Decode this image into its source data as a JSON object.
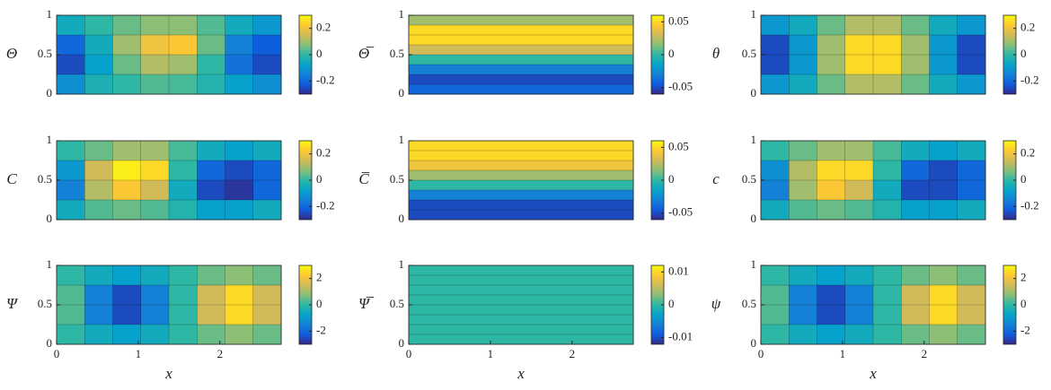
{
  "chart_data": [
    {
      "type": "heatmap",
      "ylabel": "Θ",
      "xlim": [
        0,
        2.75
      ],
      "ylim": [
        0,
        1
      ],
      "yticks": [
        0,
        0.5,
        1
      ],
      "clim": [
        -0.3,
        0.3
      ],
      "cticks": [
        -0.2,
        0,
        0.2
      ],
      "z": [
        [
          -0.05,
          0,
          0.05,
          0.08,
          0.08,
          0.03,
          -0.05,
          -0.1
        ],
        [
          -0.2,
          -0.05,
          0.1,
          0.2,
          0.22,
          0.05,
          -0.15,
          -0.22
        ],
        [
          -0.25,
          -0.08,
          0.05,
          0.12,
          0.1,
          0,
          -0.18,
          -0.25
        ],
        [
          -0.12,
          -0.03,
          0,
          0.03,
          0.02,
          -0.02,
          -0.08,
          -0.12
        ]
      ]
    },
    {
      "type": "heatmap",
      "ylabel": "Θ̅",
      "xlim": [
        0,
        2.75
      ],
      "ylim": [
        0,
        1
      ],
      "yticks": [
        0,
        0.5,
        1
      ],
      "clim": [
        -0.06,
        0.06
      ],
      "cticks": [
        -0.05,
        0,
        0.05
      ],
      "z": [
        [
          0.02
        ],
        [
          0.05
        ],
        [
          0.05
        ],
        [
          0.03
        ],
        [
          0
        ],
        [
          -0.03
        ],
        [
          -0.05
        ],
        [
          -0.04
        ]
      ]
    },
    {
      "type": "heatmap",
      "ylabel": "θ",
      "xlim": [
        0,
        2.75
      ],
      "ylim": [
        0,
        1
      ],
      "yticks": [
        0,
        0.5,
        1
      ],
      "clim": [
        -0.3,
        0.3
      ],
      "cticks": [
        -0.2,
        0,
        0.2
      ],
      "z": [
        [
          -0.1,
          -0.05,
          0.05,
          0.12,
          0.12,
          0.05,
          -0.05,
          -0.1
        ],
        [
          -0.25,
          -0.1,
          0.1,
          0.25,
          0.25,
          0.1,
          -0.1,
          -0.25
        ],
        [
          -0.25,
          -0.1,
          0.1,
          0.25,
          0.25,
          0.1,
          -0.1,
          -0.25
        ],
        [
          -0.1,
          -0.05,
          0.05,
          0.12,
          0.12,
          0.05,
          -0.05,
          -0.1
        ]
      ]
    },
    {
      "type": "heatmap",
      "ylabel": "C",
      "xlim": [
        0,
        2.75
      ],
      "ylim": [
        0,
        1
      ],
      "yticks": [
        0,
        0.5,
        1
      ],
      "clim": [
        -0.3,
        0.3
      ],
      "cticks": [
        -0.2,
        0,
        0.2
      ],
      "z": [
        [
          0,
          0.05,
          0.1,
          0.1,
          0.02,
          -0.05,
          -0.08,
          -0.05
        ],
        [
          -0.1,
          0.15,
          0.28,
          0.25,
          0,
          -0.2,
          -0.25,
          -0.2
        ],
        [
          -0.15,
          0.12,
          0.22,
          0.15,
          -0.05,
          -0.25,
          -0.28,
          -0.2
        ],
        [
          -0.05,
          0.03,
          0.05,
          0.03,
          -0.02,
          -0.08,
          -0.08,
          -0.05
        ]
      ]
    },
    {
      "type": "heatmap",
      "ylabel": "C̅",
      "xlim": [
        0,
        2.75
      ],
      "ylim": [
        0,
        1
      ],
      "yticks": [
        0,
        0.5,
        1
      ],
      "clim": [
        -0.06,
        0.06
      ],
      "cticks": [
        -0.05,
        0,
        0.05
      ],
      "z": [
        [
          0.05
        ],
        [
          0.05
        ],
        [
          0.04
        ],
        [
          0.02
        ],
        [
          0
        ],
        [
          -0.03
        ],
        [
          -0.05
        ],
        [
          -0.05
        ]
      ]
    },
    {
      "type": "heatmap",
      "ylabel": "c",
      "xlim": [
        0,
        2.75
      ],
      "ylim": [
        0,
        1
      ],
      "yticks": [
        0,
        0.5,
        1
      ],
      "clim": [
        -0.3,
        0.3
      ],
      "cticks": [
        -0.2,
        0,
        0.2
      ],
      "z": [
        [
          0,
          0.05,
          0.1,
          0.1,
          0.02,
          -0.05,
          -0.08,
          -0.05
        ],
        [
          -0.12,
          0.12,
          0.25,
          0.25,
          0,
          -0.2,
          -0.25,
          -0.2
        ],
        [
          -0.15,
          0.1,
          0.22,
          0.15,
          -0.05,
          -0.25,
          -0.25,
          -0.2
        ],
        [
          -0.05,
          0.03,
          0.05,
          0.03,
          -0.02,
          -0.08,
          -0.08,
          -0.05
        ]
      ]
    },
    {
      "type": "heatmap",
      "ylabel": "Ψ",
      "xlabel": "x",
      "xlim": [
        0,
        2.75
      ],
      "ylim": [
        0,
        1
      ],
      "xticks": [
        0,
        1,
        2
      ],
      "yticks": [
        0,
        0.5,
        1
      ],
      "clim": [
        -3,
        3
      ],
      "cticks": [
        -2,
        0,
        2
      ],
      "z": [
        [
          0,
          -0.5,
          -0.8,
          -0.5,
          0,
          0.5,
          0.8,
          0.5
        ],
        [
          0.3,
          -1.5,
          -2.5,
          -1.5,
          0,
          1.5,
          2.5,
          1.5
        ],
        [
          0.3,
          -1.5,
          -2.5,
          -1.5,
          0,
          1.5,
          2.5,
          1.5
        ],
        [
          0,
          -0.5,
          -0.8,
          -0.5,
          0,
          0.5,
          0.8,
          0.5
        ]
      ]
    },
    {
      "type": "heatmap",
      "ylabel": "Ψ̅",
      "xlabel": "x",
      "xlim": [
        0,
        2.75
      ],
      "ylim": [
        0,
        1
      ],
      "xticks": [
        0,
        1,
        2
      ],
      "yticks": [
        0,
        0.5,
        1
      ],
      "clim": [
        -0.012,
        0.012
      ],
      "cticks": [
        -0.01,
        0,
        0.01
      ],
      "z": [
        [
          0
        ],
        [
          0
        ],
        [
          0
        ],
        [
          0
        ],
        [
          0
        ],
        [
          0
        ],
        [
          0
        ],
        [
          0
        ]
      ]
    },
    {
      "type": "heatmap",
      "ylabel": "ψ",
      "xlabel": "x",
      "xlim": [
        0,
        2.75
      ],
      "ylim": [
        0,
        1
      ],
      "xticks": [
        0,
        1,
        2
      ],
      "yticks": [
        0,
        0.5,
        1
      ],
      "clim": [
        -3,
        3
      ],
      "cticks": [
        -2,
        0,
        2
      ],
      "z": [
        [
          0,
          -0.5,
          -0.8,
          -0.5,
          0,
          0.5,
          0.8,
          0.5
        ],
        [
          0.3,
          -1.5,
          -2.5,
          -1.5,
          0,
          1.5,
          2.5,
          1.5
        ],
        [
          0.3,
          -1.5,
          -2.5,
          -1.5,
          0,
          1.5,
          2.5,
          1.5
        ],
        [
          0,
          -0.5,
          -0.8,
          -0.5,
          0,
          0.5,
          0.8,
          0.5
        ]
      ]
    }
  ]
}
